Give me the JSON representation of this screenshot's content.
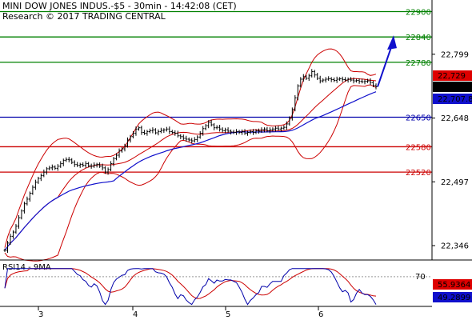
{
  "header": {
    "title": "MINI DOW JONES INDUS.-$5 - 30min - 14:42:08 (CET)",
    "subtitle": "Research © 2017 TRADING CENTRAL"
  },
  "chart_data": {
    "type": "line",
    "instrument": "MINI DOW JONES INDUS.-$5",
    "interval": "30min",
    "x_day_labels": [
      "3",
      "4",
      "5",
      "6"
    ],
    "y_ticks": [
      "22,799",
      "22,648",
      "22,497",
      "22,346"
    ],
    "ylim": [
      22300,
      22920
    ],
    "levels": [
      {
        "value": 22900,
        "label": "22900",
        "color": "#008000"
      },
      {
        "value": 22840,
        "label": "22840",
        "color": "#008000"
      },
      {
        "value": 22780,
        "label": "22780",
        "color": "#008000"
      },
      {
        "value": 22650,
        "label": "22650",
        "color": "#0000aa"
      },
      {
        "value": 22580,
        "label": "22580",
        "color": "#cc0000"
      },
      {
        "value": 22520,
        "label": "22520",
        "color": "#cc0000"
      }
    ],
    "price_close": [
      22335,
      22352,
      22368,
      22378,
      22392,
      22412,
      22428,
      22445,
      22456,
      22470,
      22484,
      22496,
      22505,
      22512,
      22520,
      22528,
      22530,
      22532,
      22529,
      22534,
      22540,
      22548,
      22550,
      22549,
      22543,
      22538,
      22536,
      22538,
      22536,
      22540,
      22535,
      22534,
      22537,
      22538,
      22534,
      22530,
      22520,
      22526,
      22540,
      22552,
      22560,
      22570,
      22575,
      22582,
      22596,
      22604,
      22612,
      22622,
      22625,
      22614,
      22612,
      22616,
      22618,
      22620,
      22613,
      22616,
      22619,
      22620,
      22622,
      22616,
      22614,
      22612,
      22606,
      22604,
      22600,
      22598,
      22596,
      22594,
      22597,
      22603,
      22612,
      22623,
      22630,
      22638,
      22632,
      22625,
      22626,
      22622,
      22618,
      22620,
      22617,
      22615,
      22614,
      22616,
      22614,
      22616,
      22612,
      22614,
      22616,
      22614,
      22618,
      22617,
      22620,
      22622,
      22618,
      22620,
      22622,
      22624,
      22622,
      22624,
      22626,
      22634,
      22648,
      22668,
      22696,
      22724,
      22740,
      22746,
      22742,
      22748,
      22758,
      22750,
      22742,
      22736,
      22738,
      22740,
      22741,
      22739,
      22737,
      22740,
      22741,
      22739,
      22738,
      22740,
      22738,
      22736,
      22737,
      22735,
      22734,
      22735,
      22736,
      22732,
      22725,
      22722
    ],
    "ma_blue_last": "22,707.8",
    "last_price": "22,722",
    "ma_red_label": "22,729",
    "projection": {
      "from": 22722,
      "to": 22840
    },
    "rsi": {
      "label": "RSI14 - 9MA",
      "level_label": "70",
      "rsi_last": "49.2899",
      "ma_last": "55.9364",
      "rsi_color": "#0000aa",
      "ma_color": "#cc0000"
    }
  },
  "colors": {
    "price": "#000000",
    "ma_long": "#1010cc",
    "bollinger": "#cc0000",
    "arrow": "#1010cc"
  }
}
